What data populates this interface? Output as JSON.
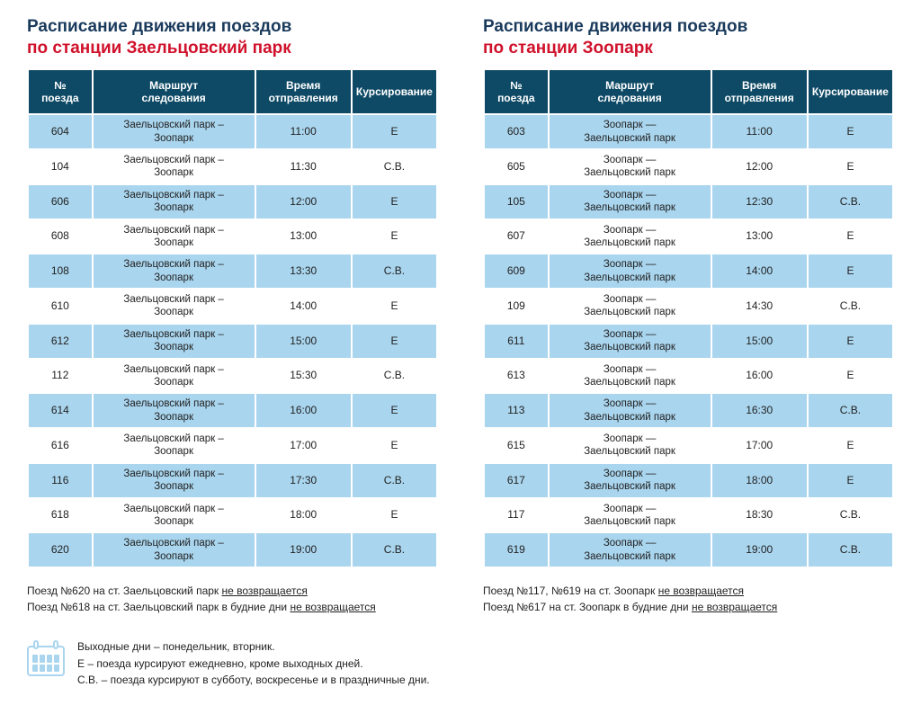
{
  "colors": {
    "title1": "#1a3a5c",
    "title2": "#d0112b",
    "header_bg": "#0e4a66",
    "row_even": "#a9d5ee",
    "row_odd": "#ffffff",
    "text": "#222222",
    "icon": "#a9d5ee"
  },
  "columns": [
    "№\nпоезда",
    "Маршрут\nследования",
    "Время\nотправления",
    "Курсирование"
  ],
  "col_widths": [
    "16%",
    "42%",
    "24%",
    "18%"
  ],
  "left": {
    "title1": "Расписание движения поездов",
    "title2": "по станции Заельцовский парк",
    "rows": [
      {
        "n": "604",
        "route": "Заельцовский парк –\nЗоопарк",
        "time": "11:00",
        "k": "Е"
      },
      {
        "n": "104",
        "route": "Заельцовский парк –\nЗоопарк",
        "time": "11:30",
        "k": "С.В."
      },
      {
        "n": "606",
        "route": "Заельцовский парк –\nЗоопарк",
        "time": "12:00",
        "k": "Е"
      },
      {
        "n": "608",
        "route": "Заельцовский парк –\nЗоопарк",
        "time": "13:00",
        "k": "Е"
      },
      {
        "n": "108",
        "route": "Заельцовский парк –\nЗоопарк",
        "time": "13:30",
        "k": "С.В."
      },
      {
        "n": "610",
        "route": "Заельцовский парк –\nЗоопарк",
        "time": "14:00",
        "k": "Е"
      },
      {
        "n": "612",
        "route": "Заельцовский парк –\nЗоопарк",
        "time": "15:00",
        "k": "Е"
      },
      {
        "n": "112",
        "route": "Заельцовский парк –\nЗоопарк",
        "time": "15:30",
        "k": "С.В."
      },
      {
        "n": "614",
        "route": "Заельцовский парк –\nЗоопарк",
        "time": "16:00",
        "k": "Е"
      },
      {
        "n": "616",
        "route": "Заельцовский парк –\nЗоопарк",
        "time": "17:00",
        "k": "Е"
      },
      {
        "n": "116",
        "route": "Заельцовский парк –\nЗоопарк",
        "time": "17:30",
        "k": "С.В."
      },
      {
        "n": "618",
        "route": "Заельцовский парк –\nЗоопарк",
        "time": "18:00",
        "k": "Е"
      },
      {
        "n": "620",
        "route": "Заельцовский парк –\nЗоопарк",
        "time": "19:00",
        "k": "С.В."
      }
    ],
    "note1_a": "Поезд №620 на ст. Заельцовский парк ",
    "note1_b": "не возвращается",
    "note2_a": "Поезд №618 на ст. Заельцовский парк в будние дни ",
    "note2_b": "не возвращается"
  },
  "right": {
    "title1": "Расписание движения поездов",
    "title2": "по станции Зоопарк",
    "rows": [
      {
        "n": "603",
        "route": "Зоопарк —\nЗаельцовский парк",
        "time": "11:00",
        "k": "Е"
      },
      {
        "n": "605",
        "route": "Зоопарк —\nЗаельцовский парк",
        "time": "12:00",
        "k": "Е"
      },
      {
        "n": "105",
        "route": "Зоопарк —\nЗаельцовский парк",
        "time": "12:30",
        "k": "С.В."
      },
      {
        "n": "607",
        "route": "Зоопарк —\nЗаельцовский парк",
        "time": "13:00",
        "k": "Е"
      },
      {
        "n": "609",
        "route": "Зоопарк —\nЗаельцовский парк",
        "time": "14:00",
        "k": "Е"
      },
      {
        "n": "109",
        "route": "Зоопарк —\nЗаельцовский парк",
        "time": "14:30",
        "k": "С.В."
      },
      {
        "n": "611",
        "route": "Зоопарк —\nЗаельцовский парк",
        "time": "15:00",
        "k": "Е"
      },
      {
        "n": "613",
        "route": "Зоопарк —\nЗаельцовский парк",
        "time": "16:00",
        "k": "Е"
      },
      {
        "n": "113",
        "route": "Зоопарк —\nЗаельцовский парк",
        "time": "16:30",
        "k": "С.В."
      },
      {
        "n": "615",
        "route": "Зоопарк —\nЗаельцовский парк",
        "time": "17:00",
        "k": "Е"
      },
      {
        "n": "617",
        "route": "Зоопарк —\nЗаельцовский парк",
        "time": "18:00",
        "k": "Е"
      },
      {
        "n": "117",
        "route": "Зоопарк —\nЗаельцовский парк",
        "time": "18:30",
        "k": "С.В."
      },
      {
        "n": "619",
        "route": "Зоопарк —\nЗаельцовский парк",
        "time": "19:00",
        "k": "С.В."
      }
    ],
    "note1_a": "Поезд №117, №619 на ст. Зоопарк ",
    "note1_b": "не возвращается",
    "note2_a": "Поезд №617 на ст. Зоопарк в будние дни ",
    "note2_b": "не возвращается"
  },
  "legend": {
    "l1": "Выходные дни – понедельник, вторник.",
    "l2": "Е – поезда курсируют ежедневно, кроме выходных дней.",
    "l3": "С.В. – поезда курсируют в субботу, воскресенье и в праздничные дни."
  }
}
